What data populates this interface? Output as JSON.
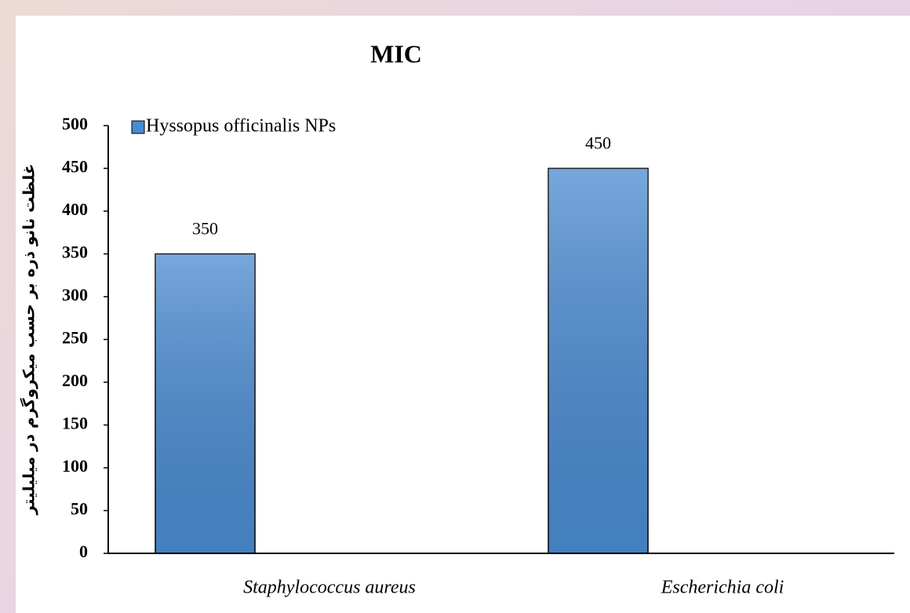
{
  "chart_data": {
    "type": "bar",
    "title": "MIC",
    "y_label": "غلظت نانو ذره بر حسب میکروگرم در میلیلیتر",
    "categories": [
      "Staphylococcus aureus",
      "Escherichia coli"
    ],
    "series": [
      {
        "name": "Hyssopus officinalis NPs",
        "color": "#4a8ad0",
        "values": [
          350,
          450
        ]
      }
    ],
    "ylim": [
      0,
      500
    ],
    "yticks": [
      0,
      50,
      100,
      150,
      200,
      250,
      300,
      350,
      400,
      450,
      500
    ],
    "grid": false,
    "legend": "top-left"
  }
}
